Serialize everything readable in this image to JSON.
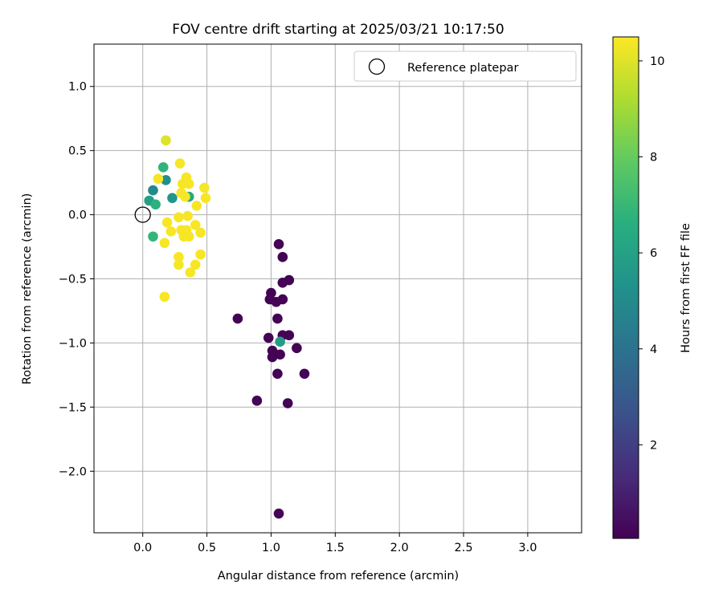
{
  "chart_data": {
    "type": "scatter",
    "title": "FOV centre drift starting at 2025/03/21 10:17:50",
    "xlabel": "Angular distance from reference (arcmin)",
    "ylabel": "Rotation from reference (arcmin)",
    "xlim": [
      -0.38,
      3.42
    ],
    "ylim": [
      -2.48,
      1.33
    ],
    "xticks": [
      0.0,
      0.5,
      1.0,
      1.5,
      2.0,
      2.5,
      3.0
    ],
    "xtick_labels": [
      "0.0",
      "0.5",
      "1.0",
      "1.5",
      "2.0",
      "2.5",
      "3.0"
    ],
    "yticks": [
      1.0,
      0.5,
      0.0,
      -0.5,
      -1.0,
      -1.5,
      -2.0
    ],
    "ytick_labels": [
      "1.0",
      "0.5",
      "0.0",
      "−0.5",
      "−1.0",
      "−1.5",
      "−2.0"
    ],
    "grid": true,
    "legend": {
      "position": "top-right",
      "entries": [
        "Reference platepar"
      ]
    },
    "colorbar": {
      "label": "Hours from first FF file",
      "ticks": [
        2,
        4,
        6,
        8,
        10
      ],
      "tick_labels": [
        "2",
        "4",
        "6",
        "8",
        "10"
      ],
      "range": [
        0.05,
        10.5
      ],
      "colormap": "viridis"
    },
    "reference_point": {
      "x": 0.0,
      "y": 0.0,
      "label": "Reference platepar"
    },
    "points": [
      {
        "x": 1.06,
        "y": -0.23,
        "h": 0.1
      },
      {
        "x": 1.09,
        "y": -0.33,
        "h": 0.1
      },
      {
        "x": 1.09,
        "y": -0.53,
        "h": 0.1
      },
      {
        "x": 1.14,
        "y": -0.51,
        "h": 0.1
      },
      {
        "x": 1.0,
        "y": -0.61,
        "h": 0.1
      },
      {
        "x": 0.99,
        "y": -0.66,
        "h": 0.1
      },
      {
        "x": 1.04,
        "y": -0.68,
        "h": 0.1
      },
      {
        "x": 1.09,
        "y": -0.66,
        "h": 0.1
      },
      {
        "x": 0.74,
        "y": -0.81,
        "h": 0.1
      },
      {
        "x": 1.05,
        "y": -0.81,
        "h": 0.1
      },
      {
        "x": 0.98,
        "y": -0.96,
        "h": 0.1
      },
      {
        "x": 1.09,
        "y": -0.94,
        "h": 0.1
      },
      {
        "x": 1.14,
        "y": -0.94,
        "h": 0.1
      },
      {
        "x": 1.2,
        "y": -1.04,
        "h": 0.1
      },
      {
        "x": 1.01,
        "y": -1.06,
        "h": 0.1
      },
      {
        "x": 1.01,
        "y": -1.11,
        "h": 0.1
      },
      {
        "x": 1.07,
        "y": -1.09,
        "h": 0.1
      },
      {
        "x": 1.05,
        "y": -1.24,
        "h": 0.1
      },
      {
        "x": 1.26,
        "y": -1.24,
        "h": 0.1
      },
      {
        "x": 0.89,
        "y": -1.45,
        "h": 0.1
      },
      {
        "x": 1.13,
        "y": -1.47,
        "h": 0.1
      },
      {
        "x": 1.06,
        "y": -2.33,
        "h": 0.1
      },
      {
        "x": 1.07,
        "y": -0.99,
        "h": 5.8
      },
      {
        "x": 0.08,
        "y": 0.19,
        "h": 5.0
      },
      {
        "x": 0.18,
        "y": 0.27,
        "h": 5.2
      },
      {
        "x": 0.23,
        "y": 0.13,
        "h": 5.5
      },
      {
        "x": 0.05,
        "y": 0.11,
        "h": 5.9
      },
      {
        "x": 0.16,
        "y": 0.37,
        "h": 6.8
      },
      {
        "x": 0.1,
        "y": 0.08,
        "h": 6.7
      },
      {
        "x": 0.08,
        "y": -0.17,
        "h": 6.9
      },
      {
        "x": 0.36,
        "y": 0.14,
        "h": 6.3
      },
      {
        "x": 0.18,
        "y": 0.58,
        "h": 10.0
      },
      {
        "x": 0.29,
        "y": 0.4,
        "h": 10.4
      },
      {
        "x": 0.12,
        "y": 0.28,
        "h": 10.4
      },
      {
        "x": 0.34,
        "y": 0.29,
        "h": 10.4
      },
      {
        "x": 0.31,
        "y": 0.24,
        "h": 10.4
      },
      {
        "x": 0.36,
        "y": 0.24,
        "h": 10.4
      },
      {
        "x": 0.48,
        "y": 0.21,
        "h": 10.4
      },
      {
        "x": 0.3,
        "y": 0.17,
        "h": 10.4
      },
      {
        "x": 0.33,
        "y": 0.14,
        "h": 10.4
      },
      {
        "x": 0.49,
        "y": 0.13,
        "h": 10.4
      },
      {
        "x": 0.42,
        "y": 0.07,
        "h": 10.4
      },
      {
        "x": 0.28,
        "y": -0.02,
        "h": 10.4
      },
      {
        "x": 0.35,
        "y": -0.01,
        "h": 10.4
      },
      {
        "x": 0.19,
        "y": -0.06,
        "h": 10.4
      },
      {
        "x": 0.41,
        "y": -0.08,
        "h": 10.4
      },
      {
        "x": 0.22,
        "y": -0.13,
        "h": 10.4
      },
      {
        "x": 0.3,
        "y": -0.12,
        "h": 10.4
      },
      {
        "x": 0.34,
        "y": -0.12,
        "h": 10.4
      },
      {
        "x": 0.45,
        "y": -0.14,
        "h": 10.4
      },
      {
        "x": 0.32,
        "y": -0.17,
        "h": 10.4
      },
      {
        "x": 0.36,
        "y": -0.17,
        "h": 10.4
      },
      {
        "x": 0.17,
        "y": -0.22,
        "h": 10.4
      },
      {
        "x": 0.28,
        "y": -0.33,
        "h": 10.4
      },
      {
        "x": 0.45,
        "y": -0.31,
        "h": 10.4
      },
      {
        "x": 0.28,
        "y": -0.39,
        "h": 10.4
      },
      {
        "x": 0.41,
        "y": -0.39,
        "h": 10.4
      },
      {
        "x": 0.37,
        "y": -0.45,
        "h": 10.4
      },
      {
        "x": 0.17,
        "y": -0.64,
        "h": 10.4
      }
    ]
  }
}
